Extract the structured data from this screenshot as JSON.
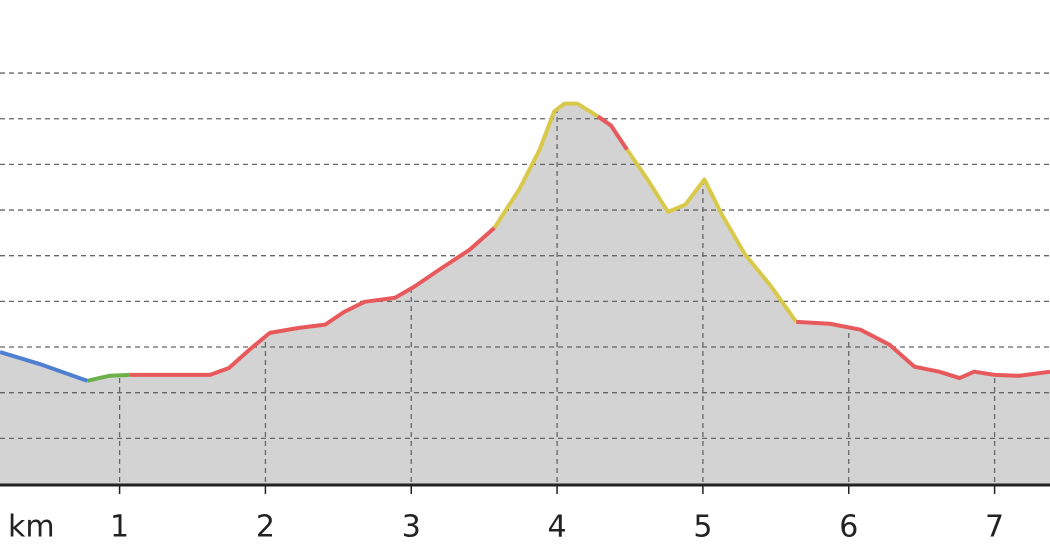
{
  "chart_data": {
    "type": "line",
    "x_unit_label": "km",
    "xlim": [
      0.18,
      7.38
    ],
    "xticks": [
      1,
      2,
      3,
      4,
      5,
      6,
      7
    ],
    "ylim": [
      0,
      10.6
    ],
    "yticks": [
      1,
      2,
      3,
      4,
      5,
      6,
      7,
      8,
      9
    ],
    "grid": true,
    "area_color": "#d3d3d3",
    "series": [
      {
        "color": "#4f7fd0",
        "x": [
          0.18,
          0.45,
          0.76,
          0.78
        ],
        "values": [
          2.89,
          2.63,
          2.28,
          2.26
        ]
      },
      {
        "color": "#6cb04a",
        "x": [
          0.78,
          0.86,
          0.93,
          1.07
        ],
        "values": [
          2.26,
          2.32,
          2.37,
          2.39
        ]
      },
      {
        "color": "#e8595c",
        "x": [
          1.07,
          1.34,
          1.62,
          1.75,
          1.89,
          2.03,
          2.23,
          2.41,
          2.54,
          2.68,
          2.89,
          3.02,
          3.19,
          3.4,
          3.57
        ],
        "values": [
          2.39,
          2.39,
          2.39,
          2.54,
          2.94,
          3.31,
          3.42,
          3.49,
          3.77,
          3.99,
          4.08,
          4.32,
          4.69,
          5.13,
          5.61
        ]
      },
      {
        "color": "#d9c94a",
        "x": [
          3.57,
          3.74,
          3.88,
          3.98,
          4.05,
          4.14,
          4.28
        ],
        "values": [
          5.61,
          6.45,
          7.32,
          8.16,
          8.33,
          8.33,
          8.05
        ]
      },
      {
        "color": "#e8595c",
        "x": [
          4.28,
          4.37,
          4.48
        ],
        "values": [
          8.05,
          7.85,
          7.32
        ]
      },
      {
        "color": "#d9c94a",
        "x": [
          4.48,
          4.62,
          4.76,
          4.88,
          5.01,
          5.13,
          5.29,
          5.46,
          5.64
        ],
        "values": [
          7.32,
          6.67,
          5.96,
          6.12,
          6.67,
          5.9,
          5.02,
          4.36,
          3.55
        ]
      },
      {
        "color": "#e8595c",
        "x": [
          5.64,
          5.87,
          6.08,
          6.28,
          6.45,
          6.62,
          6.76,
          6.86,
          7.0,
          7.17,
          7.38
        ],
        "values": [
          3.55,
          3.51,
          3.38,
          3.05,
          2.57,
          2.46,
          2.32,
          2.46,
          2.39,
          2.37,
          2.46
        ]
      }
    ]
  }
}
